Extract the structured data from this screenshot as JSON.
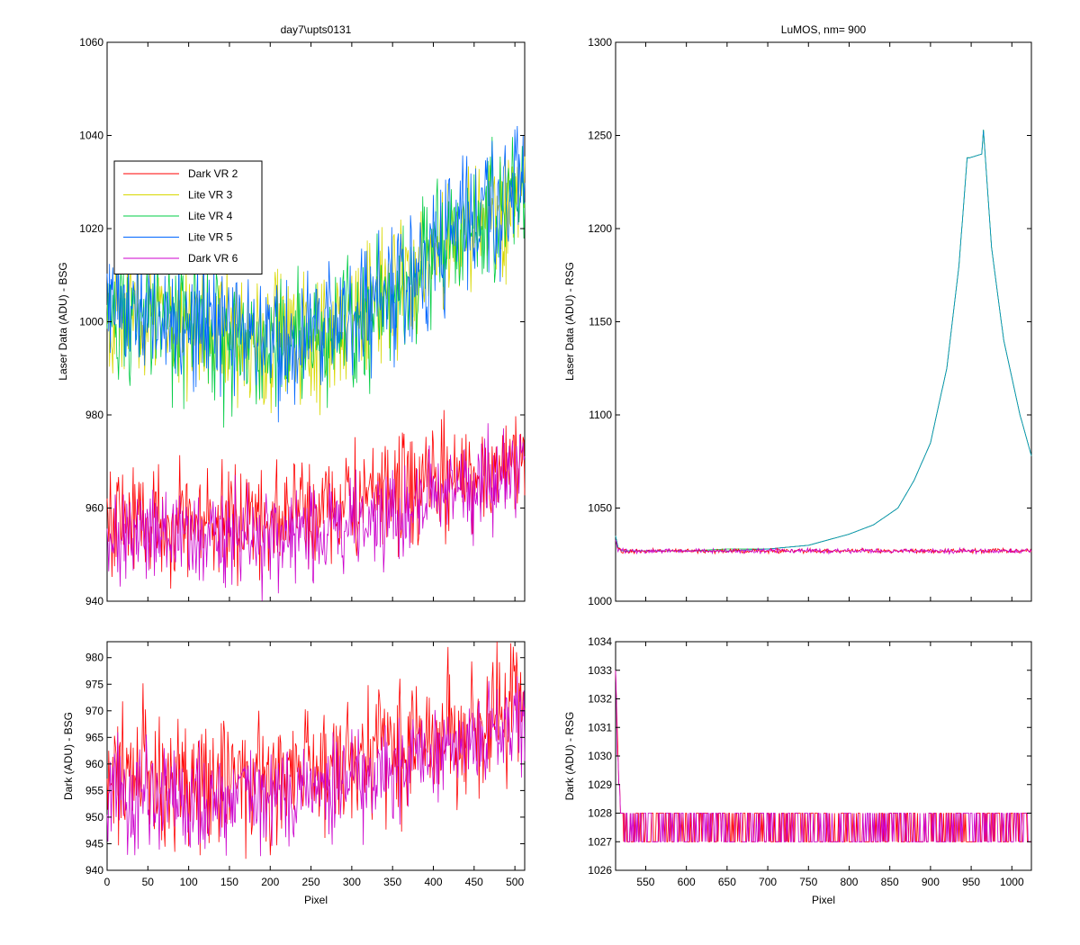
{
  "chart_data": [
    {
      "type": "line",
      "title": "day7\\upts0131",
      "xlabel": "",
      "ylabel": "Laser Data (ADU) - BSG",
      "xlim": [
        0,
        512
      ],
      "ylim": [
        940,
        1060
      ],
      "xticks": [
        0,
        50,
        100,
        150,
        200,
        250,
        300,
        350,
        400,
        450,
        500
      ],
      "yticks": [
        940,
        960,
        980,
        1000,
        1020,
        1040,
        1060
      ],
      "show_xtick_labels": false,
      "legend": {
        "placement": "upper-left",
        "entries": [
          "Dark VR 2",
          "Lite VR 3",
          "Lite VR 4",
          "Lite VR 5",
          "Dark VR 6"
        ]
      },
      "series": [
        {
          "name": "Dark VR 2",
          "color": "#ff0000",
          "x": [
            0,
            50,
            100,
            150,
            200,
            250,
            300,
            350,
            400,
            450,
            512
          ],
          "values": [
            958,
            958,
            957,
            957,
            958,
            959,
            961,
            963,
            965,
            967,
            971
          ],
          "noise": 6
        },
        {
          "name": "Lite VR 3",
          "color": "#d8d800",
          "x": [
            0,
            50,
            100,
            150,
            200,
            250,
            300,
            350,
            400,
            450,
            512
          ],
          "values": [
            1003,
            1001,
            999,
            998,
            996,
            997,
            1000,
            1006,
            1014,
            1020,
            1028
          ],
          "noise": 7
        },
        {
          "name": "Lite VR 4",
          "color": "#00cc44",
          "x": [
            0,
            50,
            100,
            150,
            200,
            250,
            300,
            350,
            400,
            450,
            512
          ],
          "values": [
            1002,
            1000,
            998,
            997,
            994,
            996,
            1000,
            1006,
            1015,
            1021,
            1029
          ],
          "noise": 7
        },
        {
          "name": "Lite VR 5",
          "color": "#0066ff",
          "x": [
            0,
            50,
            100,
            150,
            200,
            250,
            300,
            350,
            400,
            450,
            512
          ],
          "values": [
            1004,
            1002,
            1000,
            999,
            996,
            997,
            1001,
            1007,
            1016,
            1022,
            1030
          ],
          "noise": 7
        },
        {
          "name": "Dark VR 6",
          "color": "#cc00cc",
          "x": [
            0,
            50,
            100,
            150,
            200,
            250,
            300,
            350,
            400,
            450,
            512
          ],
          "values": [
            954,
            954,
            953,
            953,
            954,
            955,
            957,
            959,
            962,
            964,
            969
          ],
          "noise": 5
        }
      ]
    },
    {
      "type": "line",
      "title": "LuMOS, nm= 900",
      "xlabel": "",
      "ylabel": "Laser Data (ADU) - RSG",
      "xlim": [
        513,
        1024
      ],
      "ylim": [
        1000,
        1300
      ],
      "xticks": [
        550,
        600,
        650,
        700,
        750,
        800,
        850,
        900,
        950,
        1000
      ],
      "yticks": [
        1000,
        1050,
        1100,
        1150,
        1200,
        1250,
        1300
      ],
      "show_xtick_labels": false,
      "series": [
        {
          "name": "Lite VR 3",
          "color": "#d8d800",
          "x": [
            513,
            516,
            520,
            550,
            600,
            650,
            700,
            750,
            800,
            830,
            860,
            880,
            900,
            920,
            935,
            945,
            948,
            963,
            965,
            975,
            990,
            1010,
            1024
          ],
          "values": [
            1035,
            1029,
            1027,
            1027,
            1027,
            1027,
            1028,
            1030,
            1036,
            1041,
            1050,
            1065,
            1085,
            1125,
            1180,
            1238,
            1238,
            1240,
            1253,
            1190,
            1140,
            1100,
            1078
          ],
          "noise": 0
        },
        {
          "name": "Lite VR 4",
          "color": "#00cc44",
          "x": [
            513,
            516,
            520,
            550,
            600,
            650,
            700,
            750,
            800,
            830,
            860,
            880,
            900,
            920,
            935,
            945,
            948,
            963,
            965,
            975,
            990,
            1010,
            1024
          ],
          "values": [
            1035,
            1029,
            1027,
            1027,
            1027,
            1028,
            1028,
            1030,
            1036,
            1041,
            1050,
            1065,
            1085,
            1125,
            1180,
            1238,
            1238,
            1240,
            1253,
            1190,
            1140,
            1100,
            1078
          ],
          "noise": 0
        },
        {
          "name": "Lite VR 5",
          "color": "#0088cc",
          "x": [
            513,
            516,
            520,
            550,
            600,
            650,
            700,
            750,
            800,
            830,
            860,
            880,
            900,
            920,
            935,
            945,
            948,
            963,
            965,
            975,
            990,
            1010,
            1024
          ],
          "values": [
            1035,
            1029,
            1027,
            1027,
            1027,
            1027,
            1028,
            1030,
            1036,
            1041,
            1050,
            1065,
            1085,
            1125,
            1180,
            1238,
            1238,
            1240,
            1253,
            1190,
            1140,
            1100,
            1078
          ],
          "noise": 0
        },
        {
          "name": "Dark VR 2",
          "color": "#ff0000",
          "x": [
            513,
            516,
            520,
            600,
            700,
            800,
            900,
            1024
          ],
          "values": [
            1033,
            1028,
            1027,
            1027,
            1027,
            1027,
            1027,
            1027
          ],
          "noise": 0.6
        },
        {
          "name": "Dark VR 6",
          "color": "#cc00cc",
          "x": [
            513,
            516,
            520,
            600,
            700,
            800,
            900,
            1024
          ],
          "values": [
            1033,
            1028,
            1027,
            1027,
            1027,
            1027,
            1027,
            1027
          ],
          "noise": 0.6
        }
      ]
    },
    {
      "type": "line",
      "title": "",
      "xlabel": "Pixel",
      "ylabel": "Dark (ADU) - BSG",
      "xlim": [
        0,
        512
      ],
      "ylim": [
        940,
        983
      ],
      "xticks": [
        0,
        50,
        100,
        150,
        200,
        250,
        300,
        350,
        400,
        450,
        500
      ],
      "yticks": [
        940,
        945,
        950,
        955,
        960,
        965,
        970,
        975,
        980
      ],
      "show_xtick_labels": true,
      "series": [
        {
          "name": "Dark VR 2",
          "color": "#ff0000",
          "x": [
            0,
            50,
            100,
            150,
            200,
            250,
            300,
            350,
            400,
            450,
            512
          ],
          "values": [
            958,
            958,
            957,
            957,
            958,
            959,
            961,
            963,
            965,
            967,
            971
          ],
          "noise": 6
        },
        {
          "name": "Dark VR 6",
          "color": "#cc00cc",
          "x": [
            0,
            50,
            100,
            150,
            200,
            250,
            300,
            350,
            400,
            450,
            512
          ],
          "values": [
            954,
            954,
            953,
            953,
            954,
            955,
            957,
            959,
            962,
            964,
            969
          ],
          "noise": 5
        }
      ]
    },
    {
      "type": "line",
      "title": "",
      "xlabel": "Pixel",
      "ylabel": "Dark (ADU) - RSG",
      "xlim": [
        513,
        1024
      ],
      "ylim": [
        1026,
        1034
      ],
      "xticks": [
        550,
        600,
        650,
        700,
        750,
        800,
        850,
        900,
        950,
        1000
      ],
      "yticks": [
        1026,
        1027,
        1028,
        1029,
        1030,
        1031,
        1032,
        1033,
        1034
      ],
      "show_xtick_labels": true,
      "series": [
        {
          "name": "Dark VR 2",
          "color": "#ff0000",
          "x": [
            513,
            515,
            517,
            519,
            521,
            1024
          ],
          "values": [
            1033,
            1031,
            1029,
            1028,
            1027.5,
            1027.5
          ],
          "noise": 0.5,
          "quantized": true
        },
        {
          "name": "Dark VR 6",
          "color": "#cc00cc",
          "x": [
            513,
            515,
            517,
            519,
            521,
            1024
          ],
          "values": [
            1033,
            1030,
            1029,
            1028,
            1027.5,
            1027.5
          ],
          "noise": 0.5,
          "quantized": true
        }
      ]
    }
  ]
}
